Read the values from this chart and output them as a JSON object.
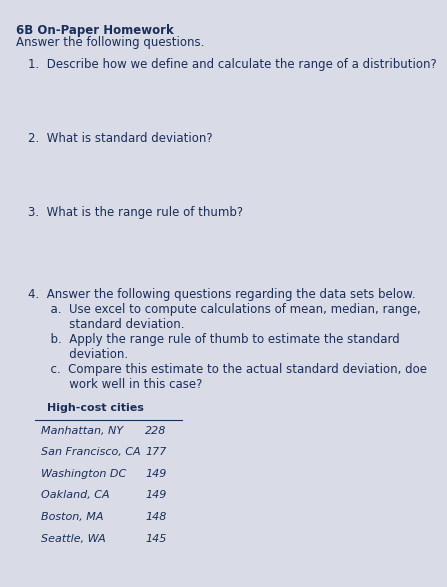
{
  "title": "6B On-Paper Homework",
  "subtitle": "Answer the following questions.",
  "questions": [
    "1.  Describe how we define and calculate the range of a distribution?",
    "2.  What is standard deviation?",
    "3.  What is the range rule of thumb?",
    "4.  Answer the following questions regarding the data sets below.\n      a.  Use excel to compute calculations of mean, median, range,\n           standard deviation.\n      b.  Apply the range rule of thumb to estimate the standard\n           deviation.\n      c.  Compare this estimate to the actual standard deviation, doe\n           work well in this case?"
  ],
  "table_header": "High-cost cities",
  "table_data": [
    [
      "Manhattan, NY",
      "228"
    ],
    [
      "San Francisco, CA",
      "177"
    ],
    [
      "Washington DC",
      "149"
    ],
    [
      "Oakland, CA",
      "149"
    ],
    [
      "Boston, MA",
      "148"
    ],
    [
      "Seattle, WA",
      "145"
    ]
  ],
  "bg_color": "#d9dce6",
  "text_color": "#1a2e5a",
  "title_fontsize": 8.5,
  "subtitle_fontsize": 8.5,
  "question_fontsize": 8.5,
  "table_fontsize": 8.0
}
